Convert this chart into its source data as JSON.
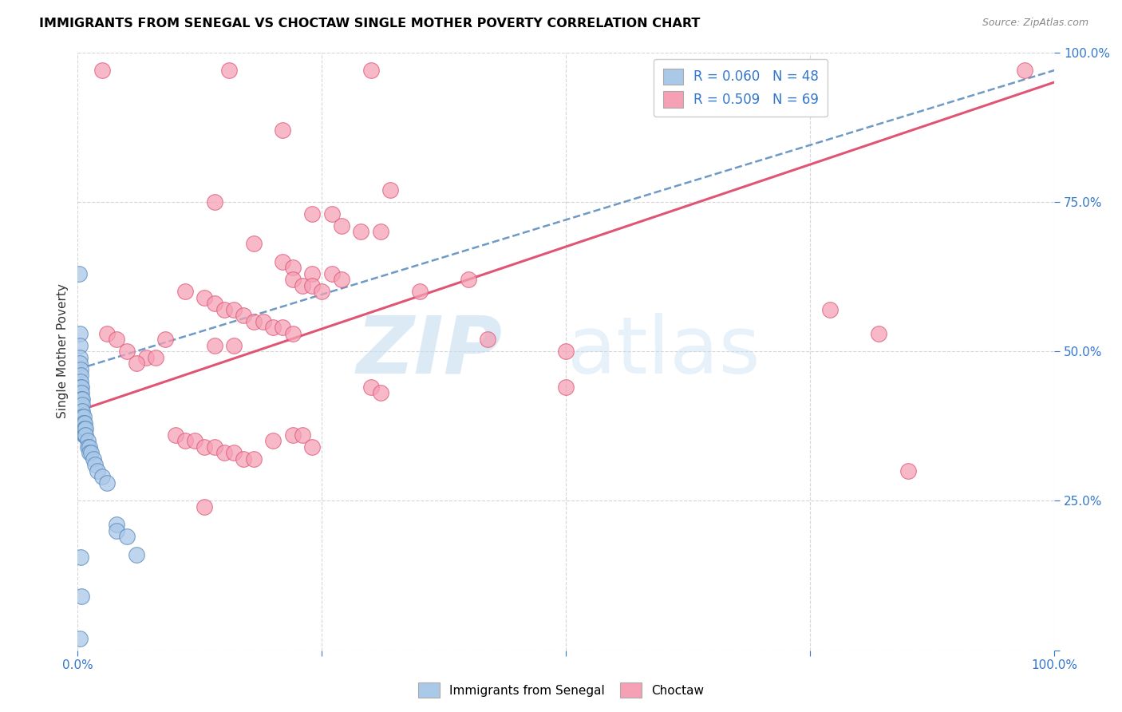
{
  "title": "IMMIGRANTS FROM SENEGAL VS CHOCTAW SINGLE MOTHER POVERTY CORRELATION CHART",
  "source": "Source: ZipAtlas.com",
  "ylabel": "Single Mother Poverty",
  "xlim": [
    0,
    1.0
  ],
  "ylim": [
    0,
    1.0
  ],
  "xticks": [
    0.0,
    0.25,
    0.5,
    0.75,
    1.0
  ],
  "yticks": [
    0.0,
    0.25,
    0.5,
    0.75,
    1.0
  ],
  "xticklabels": [
    "0.0%",
    "",
    "",
    "",
    "100.0%"
  ],
  "yticklabels": [
    "",
    "25.0%",
    "50.0%",
    "75.0%",
    "100.0%"
  ],
  "color_blue": "#aac8e8",
  "color_pink": "#f5a0b5",
  "line_blue": "#5588bb",
  "line_pink": "#e05575",
  "tick_color": "#3377cc",
  "grid_color": "#cccccc",
  "blue_points": [
    [
      0.001,
      0.63
    ],
    [
      0.002,
      0.53
    ],
    [
      0.002,
      0.51
    ],
    [
      0.002,
      0.49
    ],
    [
      0.002,
      0.48
    ],
    [
      0.003,
      0.47
    ],
    [
      0.003,
      0.46
    ],
    [
      0.003,
      0.45
    ],
    [
      0.003,
      0.44
    ],
    [
      0.003,
      0.43
    ],
    [
      0.003,
      0.42
    ],
    [
      0.003,
      0.41
    ],
    [
      0.004,
      0.44
    ],
    [
      0.004,
      0.43
    ],
    [
      0.004,
      0.42
    ],
    [
      0.004,
      0.4
    ],
    [
      0.005,
      0.42
    ],
    [
      0.005,
      0.41
    ],
    [
      0.005,
      0.4
    ],
    [
      0.005,
      0.39
    ],
    [
      0.005,
      0.38
    ],
    [
      0.005,
      0.37
    ],
    [
      0.006,
      0.39
    ],
    [
      0.006,
      0.38
    ],
    [
      0.006,
      0.37
    ],
    [
      0.006,
      0.36
    ],
    [
      0.007,
      0.38
    ],
    [
      0.007,
      0.37
    ],
    [
      0.007,
      0.36
    ],
    [
      0.008,
      0.37
    ],
    [
      0.008,
      0.36
    ],
    [
      0.01,
      0.35
    ],
    [
      0.01,
      0.34
    ],
    [
      0.012,
      0.34
    ],
    [
      0.012,
      0.33
    ],
    [
      0.014,
      0.33
    ],
    [
      0.016,
      0.32
    ],
    [
      0.018,
      0.31
    ],
    [
      0.02,
      0.3
    ],
    [
      0.025,
      0.29
    ],
    [
      0.03,
      0.28
    ],
    [
      0.04,
      0.21
    ],
    [
      0.04,
      0.2
    ],
    [
      0.05,
      0.19
    ],
    [
      0.06,
      0.16
    ],
    [
      0.004,
      0.09
    ],
    [
      0.002,
      0.02
    ],
    [
      0.003,
      0.155
    ]
  ],
  "pink_points": [
    [
      0.025,
      0.97
    ],
    [
      0.155,
      0.97
    ],
    [
      0.3,
      0.97
    ],
    [
      0.97,
      0.97
    ],
    [
      0.21,
      0.87
    ],
    [
      0.32,
      0.77
    ],
    [
      0.14,
      0.75
    ],
    [
      0.24,
      0.73
    ],
    [
      0.26,
      0.73
    ],
    [
      0.27,
      0.71
    ],
    [
      0.29,
      0.7
    ],
    [
      0.31,
      0.7
    ],
    [
      0.18,
      0.68
    ],
    [
      0.21,
      0.65
    ],
    [
      0.22,
      0.64
    ],
    [
      0.24,
      0.63
    ],
    [
      0.26,
      0.63
    ],
    [
      0.27,
      0.62
    ],
    [
      0.22,
      0.62
    ],
    [
      0.23,
      0.61
    ],
    [
      0.24,
      0.61
    ],
    [
      0.25,
      0.6
    ],
    [
      0.11,
      0.6
    ],
    [
      0.13,
      0.59
    ],
    [
      0.14,
      0.58
    ],
    [
      0.15,
      0.57
    ],
    [
      0.16,
      0.57
    ],
    [
      0.17,
      0.56
    ],
    [
      0.18,
      0.55
    ],
    [
      0.19,
      0.55
    ],
    [
      0.2,
      0.54
    ],
    [
      0.21,
      0.54
    ],
    [
      0.22,
      0.53
    ],
    [
      0.09,
      0.52
    ],
    [
      0.14,
      0.51
    ],
    [
      0.16,
      0.51
    ],
    [
      0.05,
      0.5
    ],
    [
      0.07,
      0.49
    ],
    [
      0.08,
      0.49
    ],
    [
      0.35,
      0.6
    ],
    [
      0.4,
      0.62
    ],
    [
      0.42,
      0.52
    ],
    [
      0.5,
      0.5
    ],
    [
      0.77,
      0.57
    ],
    [
      0.82,
      0.53
    ],
    [
      0.1,
      0.36
    ],
    [
      0.11,
      0.35
    ],
    [
      0.12,
      0.35
    ],
    [
      0.13,
      0.34
    ],
    [
      0.14,
      0.34
    ],
    [
      0.15,
      0.33
    ],
    [
      0.16,
      0.33
    ],
    [
      0.17,
      0.32
    ],
    [
      0.18,
      0.32
    ],
    [
      0.22,
      0.36
    ],
    [
      0.23,
      0.36
    ],
    [
      0.24,
      0.34
    ],
    [
      0.2,
      0.35
    ],
    [
      0.13,
      0.24
    ],
    [
      0.3,
      0.44
    ],
    [
      0.31,
      0.43
    ],
    [
      0.5,
      0.44
    ],
    [
      0.85,
      0.3
    ],
    [
      0.06,
      0.48
    ],
    [
      0.03,
      0.53
    ],
    [
      0.04,
      0.52
    ]
  ],
  "blue_trendline": [
    0.0,
    1.0,
    0.47,
    0.97
  ],
  "pink_trendline": [
    0.0,
    1.0,
    0.4,
    0.95
  ]
}
